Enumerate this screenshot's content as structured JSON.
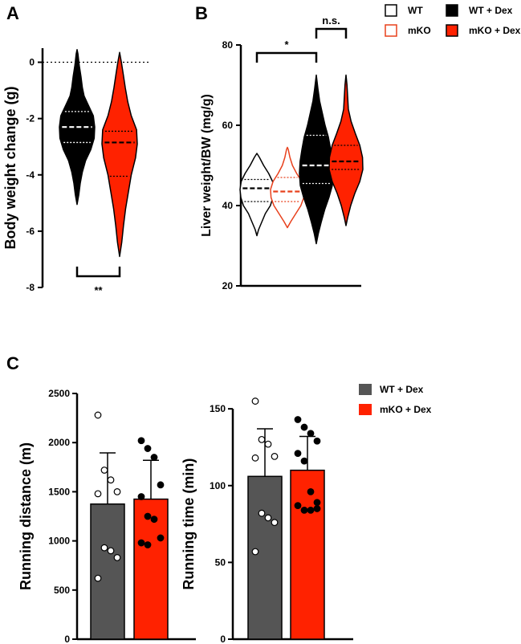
{
  "panels": {
    "a": "A",
    "b": "B",
    "c": "C"
  },
  "colors": {
    "black": "#000000",
    "red": "#ff2200",
    "gray": "#555555",
    "white": "#ffffff"
  },
  "legend_top": [
    {
      "label": "WT",
      "fill": "#ffffff",
      "stroke": "#000000"
    },
    {
      "label": "WT + Dex",
      "fill": "#000000",
      "stroke": "#000000"
    },
    {
      "label": "mKO",
      "fill": "#ffffff",
      "stroke": "#e8401c"
    },
    {
      "label": "mKO + Dex",
      "fill": "#ff2200",
      "stroke": "#000000"
    }
  ],
  "legend_c": [
    {
      "label": "WT + Dex",
      "fill": "#555555"
    },
    {
      "label": "mKO + Dex",
      "fill": "#ff2200"
    }
  ],
  "chart_data": [
    {
      "id": "A",
      "type": "violin",
      "ylabel": "Body weight change (g)",
      "ylim": [
        -8,
        0.5
      ],
      "yticks": [
        0,
        -2,
        -4,
        -6,
        -8
      ],
      "reference_line": 0,
      "groups": [
        {
          "name": "WT + Dex",
          "fill": "#000000",
          "stroke": "#000000",
          "min": -5.05,
          "max": 0.45,
          "median": -2.3,
          "q1": -2.85,
          "q3": -1.75,
          "profile": [
            [
              -5.05,
              0
            ],
            [
              -4.7,
              0.1
            ],
            [
              -4.3,
              0.18
            ],
            [
              -3.9,
              0.3
            ],
            [
              -3.5,
              0.48
            ],
            [
              -3.1,
              0.78
            ],
            [
              -2.7,
              0.97
            ],
            [
              -2.3,
              1.0
            ],
            [
              -1.9,
              0.92
            ],
            [
              -1.5,
              0.62
            ],
            [
              -1.2,
              0.4
            ],
            [
              -0.9,
              0.3
            ],
            [
              -0.5,
              0.22
            ],
            [
              -0.1,
              0.12
            ],
            [
              0.3,
              0.05
            ],
            [
              0.45,
              0
            ]
          ]
        },
        {
          "name": "mKO + Dex",
          "fill": "#ff2200",
          "stroke": "#000000",
          "min": -6.9,
          "max": 0.35,
          "median": -2.85,
          "q1": -4.05,
          "q3": -2.45,
          "profile": [
            [
              -6.9,
              0
            ],
            [
              -6.4,
              0.12
            ],
            [
              -5.8,
              0.22
            ],
            [
              -5.2,
              0.34
            ],
            [
              -4.6,
              0.5
            ],
            [
              -4.0,
              0.66
            ],
            [
              -3.4,
              0.9
            ],
            [
              -2.9,
              1.0
            ],
            [
              -2.4,
              0.96
            ],
            [
              -1.9,
              0.66
            ],
            [
              -1.4,
              0.46
            ],
            [
              -0.9,
              0.32
            ],
            [
              -0.4,
              0.2
            ],
            [
              0.0,
              0.1
            ],
            [
              0.35,
              0
            ]
          ]
        }
      ],
      "significance": [
        {
          "label": "**",
          "between": [
            0,
            1
          ],
          "y": -7.6
        }
      ]
    },
    {
      "id": "B",
      "type": "violin",
      "ylabel": "Liver weight/BW (mg/g)",
      "ylim": [
        20,
        80
      ],
      "yticks": [
        80,
        60,
        40,
        20
      ],
      "groups": [
        {
          "name": "WT",
          "fill": "#ffffff",
          "stroke": "#000000",
          "min": 32.5,
          "max": 53.0,
          "median": 44.3,
          "q1": 41.0,
          "q3": 46.5,
          "profile": [
            [
              32.5,
              0
            ],
            [
              34,
              0.1
            ],
            [
              36,
              0.3
            ],
            [
              38,
              0.5
            ],
            [
              40,
              0.8
            ],
            [
              42,
              0.95
            ],
            [
              44,
              1.0
            ],
            [
              46,
              0.93
            ],
            [
              48,
              0.7
            ],
            [
              50,
              0.4
            ],
            [
              52,
              0.15
            ],
            [
              53,
              0
            ]
          ]
        },
        {
          "name": "mKO",
          "fill": "#ffffff",
          "stroke": "#e8401c",
          "min": 34.5,
          "max": 54.5,
          "median": 43.5,
          "q1": 41.0,
          "q3": 47.0,
          "profile": [
            [
              34.5,
              0
            ],
            [
              36,
              0.2
            ],
            [
              38,
              0.5
            ],
            [
              40,
              0.8
            ],
            [
              42,
              0.97
            ],
            [
              44,
              1.0
            ],
            [
              46,
              0.85
            ],
            [
              48,
              0.55
            ],
            [
              50,
              0.3
            ],
            [
              52,
              0.15
            ],
            [
              54,
              0.05
            ],
            [
              54.5,
              0
            ]
          ]
        },
        {
          "name": "WT + Dex",
          "fill": "#000000",
          "stroke": "#000000",
          "min": 30.5,
          "max": 72.5,
          "median": 50.0,
          "q1": 45.5,
          "q3": 57.5,
          "profile": [
            [
              30.5,
              0
            ],
            [
              33,
              0.12
            ],
            [
              36,
              0.3
            ],
            [
              39,
              0.5
            ],
            [
              42,
              0.75
            ],
            [
              45,
              0.95
            ],
            [
              48,
              1.0
            ],
            [
              51,
              0.96
            ],
            [
              54,
              0.85
            ],
            [
              57,
              0.72
            ],
            [
              60,
              0.52
            ],
            [
              63,
              0.36
            ],
            [
              66,
              0.2
            ],
            [
              69,
              0.1
            ],
            [
              72.5,
              0
            ]
          ]
        },
        {
          "name": "mKO + Dex",
          "fill": "#ff2200",
          "stroke": "#000000",
          "min": 35.0,
          "max": 72.5,
          "median": 51.0,
          "q1": 49.0,
          "q3": 55.0,
          "profile": [
            [
              35,
              0
            ],
            [
              37,
              0.1
            ],
            [
              40,
              0.28
            ],
            [
              43,
              0.52
            ],
            [
              46,
              0.82
            ],
            [
              49,
              1.0
            ],
            [
              52,
              0.98
            ],
            [
              55,
              0.82
            ],
            [
              58,
              0.55
            ],
            [
              61,
              0.3
            ],
            [
              64,
              0.14
            ],
            [
              67,
              0.1
            ],
            [
              70,
              0.06
            ],
            [
              72.5,
              0
            ]
          ]
        }
      ],
      "significance": [
        {
          "label": "*",
          "between": [
            0,
            2
          ],
          "y": 78.0
        },
        {
          "label": "n.s.",
          "between": [
            2,
            3
          ],
          "y": 84.0
        }
      ]
    },
    {
      "id": "C-distance",
      "type": "bar",
      "ylabel": "Running distance (m)",
      "ylim": [
        0,
        2500
      ],
      "yticks": [
        2500,
        2000,
        1500,
        1000,
        500,
        0
      ],
      "categories": [
        "WT + Dex",
        "mKO + Dex"
      ],
      "values": [
        1375,
        1425
      ],
      "errors": [
        520,
        395
      ],
      "points": [
        [
          2280,
          1720,
          1620,
          1500,
          1480,
          930,
          900,
          830,
          620
        ],
        [
          2020,
          1940,
          1850,
          1570,
          1450,
          1250,
          1220,
          1030,
          980,
          960
        ]
      ]
    },
    {
      "id": "C-time",
      "type": "bar",
      "ylabel": "Running time (min)",
      "ylim": [
        0,
        160
      ],
      "yticks": [
        150,
        100,
        50,
        0
      ],
      "categories": [
        "WT + Dex",
        "mKO + Dex"
      ],
      "values": [
        106,
        110
      ],
      "errors": [
        31,
        22
      ],
      "points": [
        [
          155,
          130,
          127,
          119,
          118,
          82,
          79,
          76,
          57
        ],
        [
          143,
          138,
          134,
          129,
          121,
          116,
          96,
          89,
          87,
          84,
          84,
          85
        ]
      ]
    }
  ]
}
